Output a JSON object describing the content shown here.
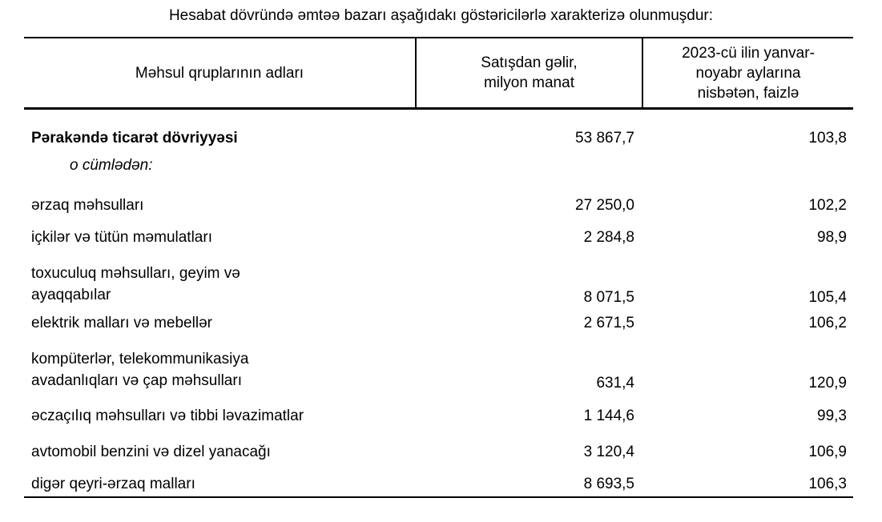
{
  "page": {
    "title": "Hesabat dövründə əmtəə bazarı aşağıdakı göstəricilərlə xarakterizə olunmuşdur:"
  },
  "table": {
    "columns": [
      {
        "label": "Məhsul qruplarının adları"
      },
      {
        "label": "Satışdan gəlir,\nmilyon manat"
      },
      {
        "label": "2023-cü ilin yanvar-\nnoyabr aylarına\nnisbətən, faizlə"
      }
    ],
    "rows": [
      {
        "label": "Pərakəndə ticarət dövriyyəsi",
        "revenue": "53 867,7",
        "percent": "103,8"
      },
      {
        "label": "o cümlədən:",
        "revenue": "",
        "percent": ""
      },
      {
        "label": "ərzaq məhsulları",
        "revenue": "27 250,0",
        "percent": "102,2"
      },
      {
        "label": "içkilər və tütün məmulatları",
        "revenue": "2 284,8",
        "percent": "98,9"
      },
      {
        "label": "toxuculuq məhsulları, geyim və\nayaqqabılar",
        "revenue": "8 071,5",
        "percent": "105,4"
      },
      {
        "label": "elektrik malları və mebellər",
        "revenue": "2 671,5",
        "percent": "106,2"
      },
      {
        "label": "kompüterlər, telekommunikasiya\navadanlıqları və çap məhsulları",
        "revenue": "631,4",
        "percent": "120,9"
      },
      {
        "label": "əczaçılıq məhsulları və tibbi ləvazimatlar",
        "revenue": "1 144,6",
        "percent": "99,3"
      },
      {
        "label": "avtomobil benzini və dizel yanacağı",
        "revenue": "3 120,4",
        "percent": "106,9"
      },
      {
        "label": "digər qeyri-ərzaq malları",
        "revenue": "8 693,5",
        "percent": "106,3"
      }
    ]
  },
  "colors": {
    "background": "#ffffff",
    "text": "#000000",
    "border": "#000000"
  }
}
